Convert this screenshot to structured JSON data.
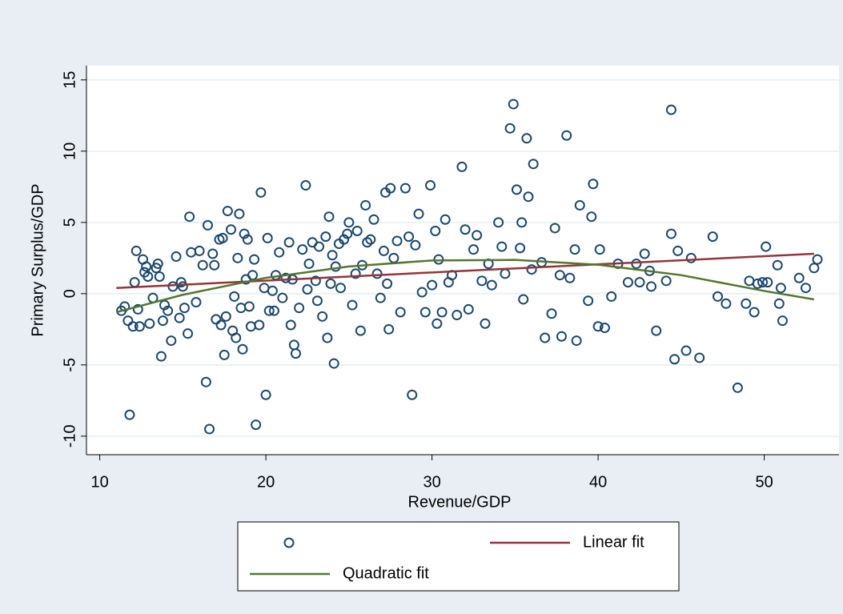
{
  "chart_data": {
    "type": "scatter",
    "x_label": "Revenue/GDP",
    "y_label": "Primary Surplus/GDP",
    "xlim": [
      9.2,
      54.5
    ],
    "ylim": [
      -11.3,
      16
    ],
    "xticks": [
      10,
      20,
      30,
      40,
      50
    ],
    "yticks": [
      -10,
      -5,
      0,
      5,
      10,
      15
    ],
    "grid": true,
    "legend": "bottom",
    "series": [
      {
        "type": "scatter",
        "color": "#1a476f",
        "x": [
          11.3,
          11.5,
          11.7,
          11.8,
          12,
          12.1,
          12.2,
          12.3,
          12.4,
          12.6,
          12.7,
          12.8,
          12.9,
          13,
          13.2,
          13.4,
          13.5,
          13.6,
          13.7,
          13.8,
          13.9,
          14.1,
          14.3,
          14.4,
          14.6,
          14.8,
          14.9,
          15,
          15.1,
          15.3,
          15.4,
          15.5,
          15.8,
          16,
          16.2,
          16.4,
          16.5,
          16.6,
          16.8,
          16.9,
          17,
          17.2,
          17.3,
          17.4,
          17.5,
          17.6,
          17.7,
          17.9,
          18,
          18.1,
          18.2,
          18.3,
          18.4,
          18.5,
          18.6,
          18.7,
          18.8,
          18.9,
          19,
          19.1,
          19.2,
          19.3,
          19.4,
          19.6,
          19.7,
          19.9,
          20,
          20.1,
          20.2,
          20.4,
          20.5,
          20.6,
          20.8,
          21,
          21.2,
          21.4,
          21.5,
          21.6,
          21.7,
          21.8,
          22,
          22.2,
          22.4,
          22.5,
          22.6,
          22.8,
          23,
          23.1,
          23.2,
          23.4,
          23.6,
          23.7,
          23.8,
          23.9,
          24,
          24.1,
          24.2,
          24.4,
          24.5,
          24.7,
          24.9,
          25,
          25.2,
          25.4,
          25.5,
          25.7,
          25.8,
          26,
          26.1,
          26.3,
          26.5,
          26.7,
          26.9,
          27.1,
          27.2,
          27.3,
          27.4,
          27.5,
          27.7,
          27.9,
          28.1,
          28.4,
          28.6,
          28.8,
          29,
          29.2,
          29.4,
          29.6,
          29.9,
          30,
          30.2,
          30.3,
          30.4,
          30.6,
          30.8,
          31,
          31.2,
          31.5,
          31.8,
          32,
          32.2,
          32.5,
          32.7,
          33,
          33.2,
          33.4,
          33.6,
          34,
          34.2,
          34.4,
          34.7,
          34.9,
          35.1,
          35.3,
          35.4,
          35.5,
          35.7,
          35.8,
          36,
          36.1,
          36.6,
          36.8,
          37.2,
          37.4,
          37.7,
          37.8,
          38.1,
          38.3,
          38.6,
          38.7,
          38.9,
          39.4,
          39.6,
          39.7,
          40,
          40.1,
          40.4,
          40.8,
          41.2,
          41.8,
          42.3,
          42.5,
          42.8,
          43.1,
          43.2,
          43.5,
          44.1,
          44.4,
          44.4,
          44.6,
          44.8,
          45.3,
          45.6,
          46.1,
          46.9,
          47.2,
          47.7,
          48.4,
          48.9,
          49.1,
          49.4,
          49.6,
          49.9,
          50.1,
          50.2,
          50.8,
          50.9,
          51,
          51.1,
          52.1,
          52.5,
          53,
          53.2
        ],
        "values": [
          -1.2,
          -0.9,
          -1.9,
          -8.5,
          -2.3,
          0.8,
          3,
          -1.1,
          -2.3,
          2.4,
          1.5,
          1.9,
          1.2,
          -2.1,
          -0.3,
          1.8,
          2.1,
          1.2,
          -4.4,
          -1.9,
          -0.8,
          -1.2,
          -3.3,
          0.5,
          2.6,
          -1.7,
          0.8,
          0.5,
          -1,
          -2.8,
          5.4,
          2.9,
          -0.6,
          3,
          2,
          -6.2,
          4.8,
          -9.5,
          2.8,
          2,
          -1.8,
          3.8,
          -2.2,
          3.9,
          -4.3,
          -1.6,
          5.8,
          4.5,
          -2.6,
          -0.2,
          -3.1,
          2.5,
          5.6,
          -1,
          -3.9,
          4.2,
          1,
          3.8,
          -0.9,
          -2.3,
          1.3,
          2.4,
          -9.2,
          -2.2,
          7.1,
          0.4,
          -7.1,
          3.9,
          -1.2,
          0.2,
          -1.2,
          1.3,
          2.9,
          -0.3,
          1.1,
          3.6,
          -2.2,
          1,
          -3.6,
          -4.2,
          -1,
          3.1,
          7.6,
          0.3,
          2.1,
          3.6,
          0.9,
          -0.5,
          3.3,
          -1.6,
          4,
          -3.1,
          5.4,
          0.7,
          2.7,
          -4.9,
          1.9,
          3.5,
          0.4,
          3.8,
          4.2,
          5,
          -0.8,
          1.4,
          4.4,
          -2.6,
          2,
          6.2,
          3.6,
          3.8,
          5.2,
          1.4,
          -0.3,
          3,
          7.1,
          0.7,
          -2.5,
          7.4,
          2.5,
          3.7,
          -1.3,
          7.4,
          4,
          -7.1,
          3.4,
          5.6,
          0.1,
          -1.3,
          7.6,
          0.6,
          4.4,
          -2.1,
          2.4,
          -1.3,
          5.2,
          0.8,
          1.3,
          -1.5,
          8.9,
          4.5,
          -1.1,
          3.1,
          4.1,
          0.9,
          -2.1,
          2.1,
          0.6,
          5,
          3.3,
          1.4,
          11.6,
          13.3,
          7.3,
          3.2,
          5,
          -0.4,
          10.9,
          6.8,
          1.7,
          9.1,
          2.2,
          -3.1,
          -1.4,
          4.6,
          1.3,
          -3,
          11.1,
          1.1,
          3.1,
          -3.3,
          6.2,
          -0.5,
          5.4,
          7.7,
          -2.3,
          3.1,
          -2.4,
          -0.2,
          2.1,
          0.8,
          2.1,
          0.8,
          2.8,
          1.6,
          0.5,
          -2.6,
          0.9,
          4.2,
          12.9,
          -4.6,
          3,
          -4,
          2.5,
          -4.5,
          4,
          -0.2,
          -0.7,
          -6.6,
          -0.7,
          0.9,
          -1.3,
          0.7,
          0.8,
          3.3,
          0.8,
          2,
          -0.7,
          0.4,
          -1.9,
          1.1,
          0.4,
          1.8,
          2.4
        ]
      },
      {
        "type": "line",
        "name": "Linear fit",
        "color": "#90353b",
        "x": [
          11,
          53
        ],
        "values": [
          0.4,
          2.8
        ]
      },
      {
        "type": "line",
        "name": "Quadratic fit",
        "color": "#55752f",
        "x": [
          11,
          15,
          20,
          25,
          30,
          35,
          40,
          45,
          50,
          53
        ],
        "values": [
          -1.3,
          -0.08,
          1.11,
          1.91,
          2.33,
          2.37,
          2.03,
          1.3,
          0.19,
          -0.4
        ]
      }
    ]
  }
}
